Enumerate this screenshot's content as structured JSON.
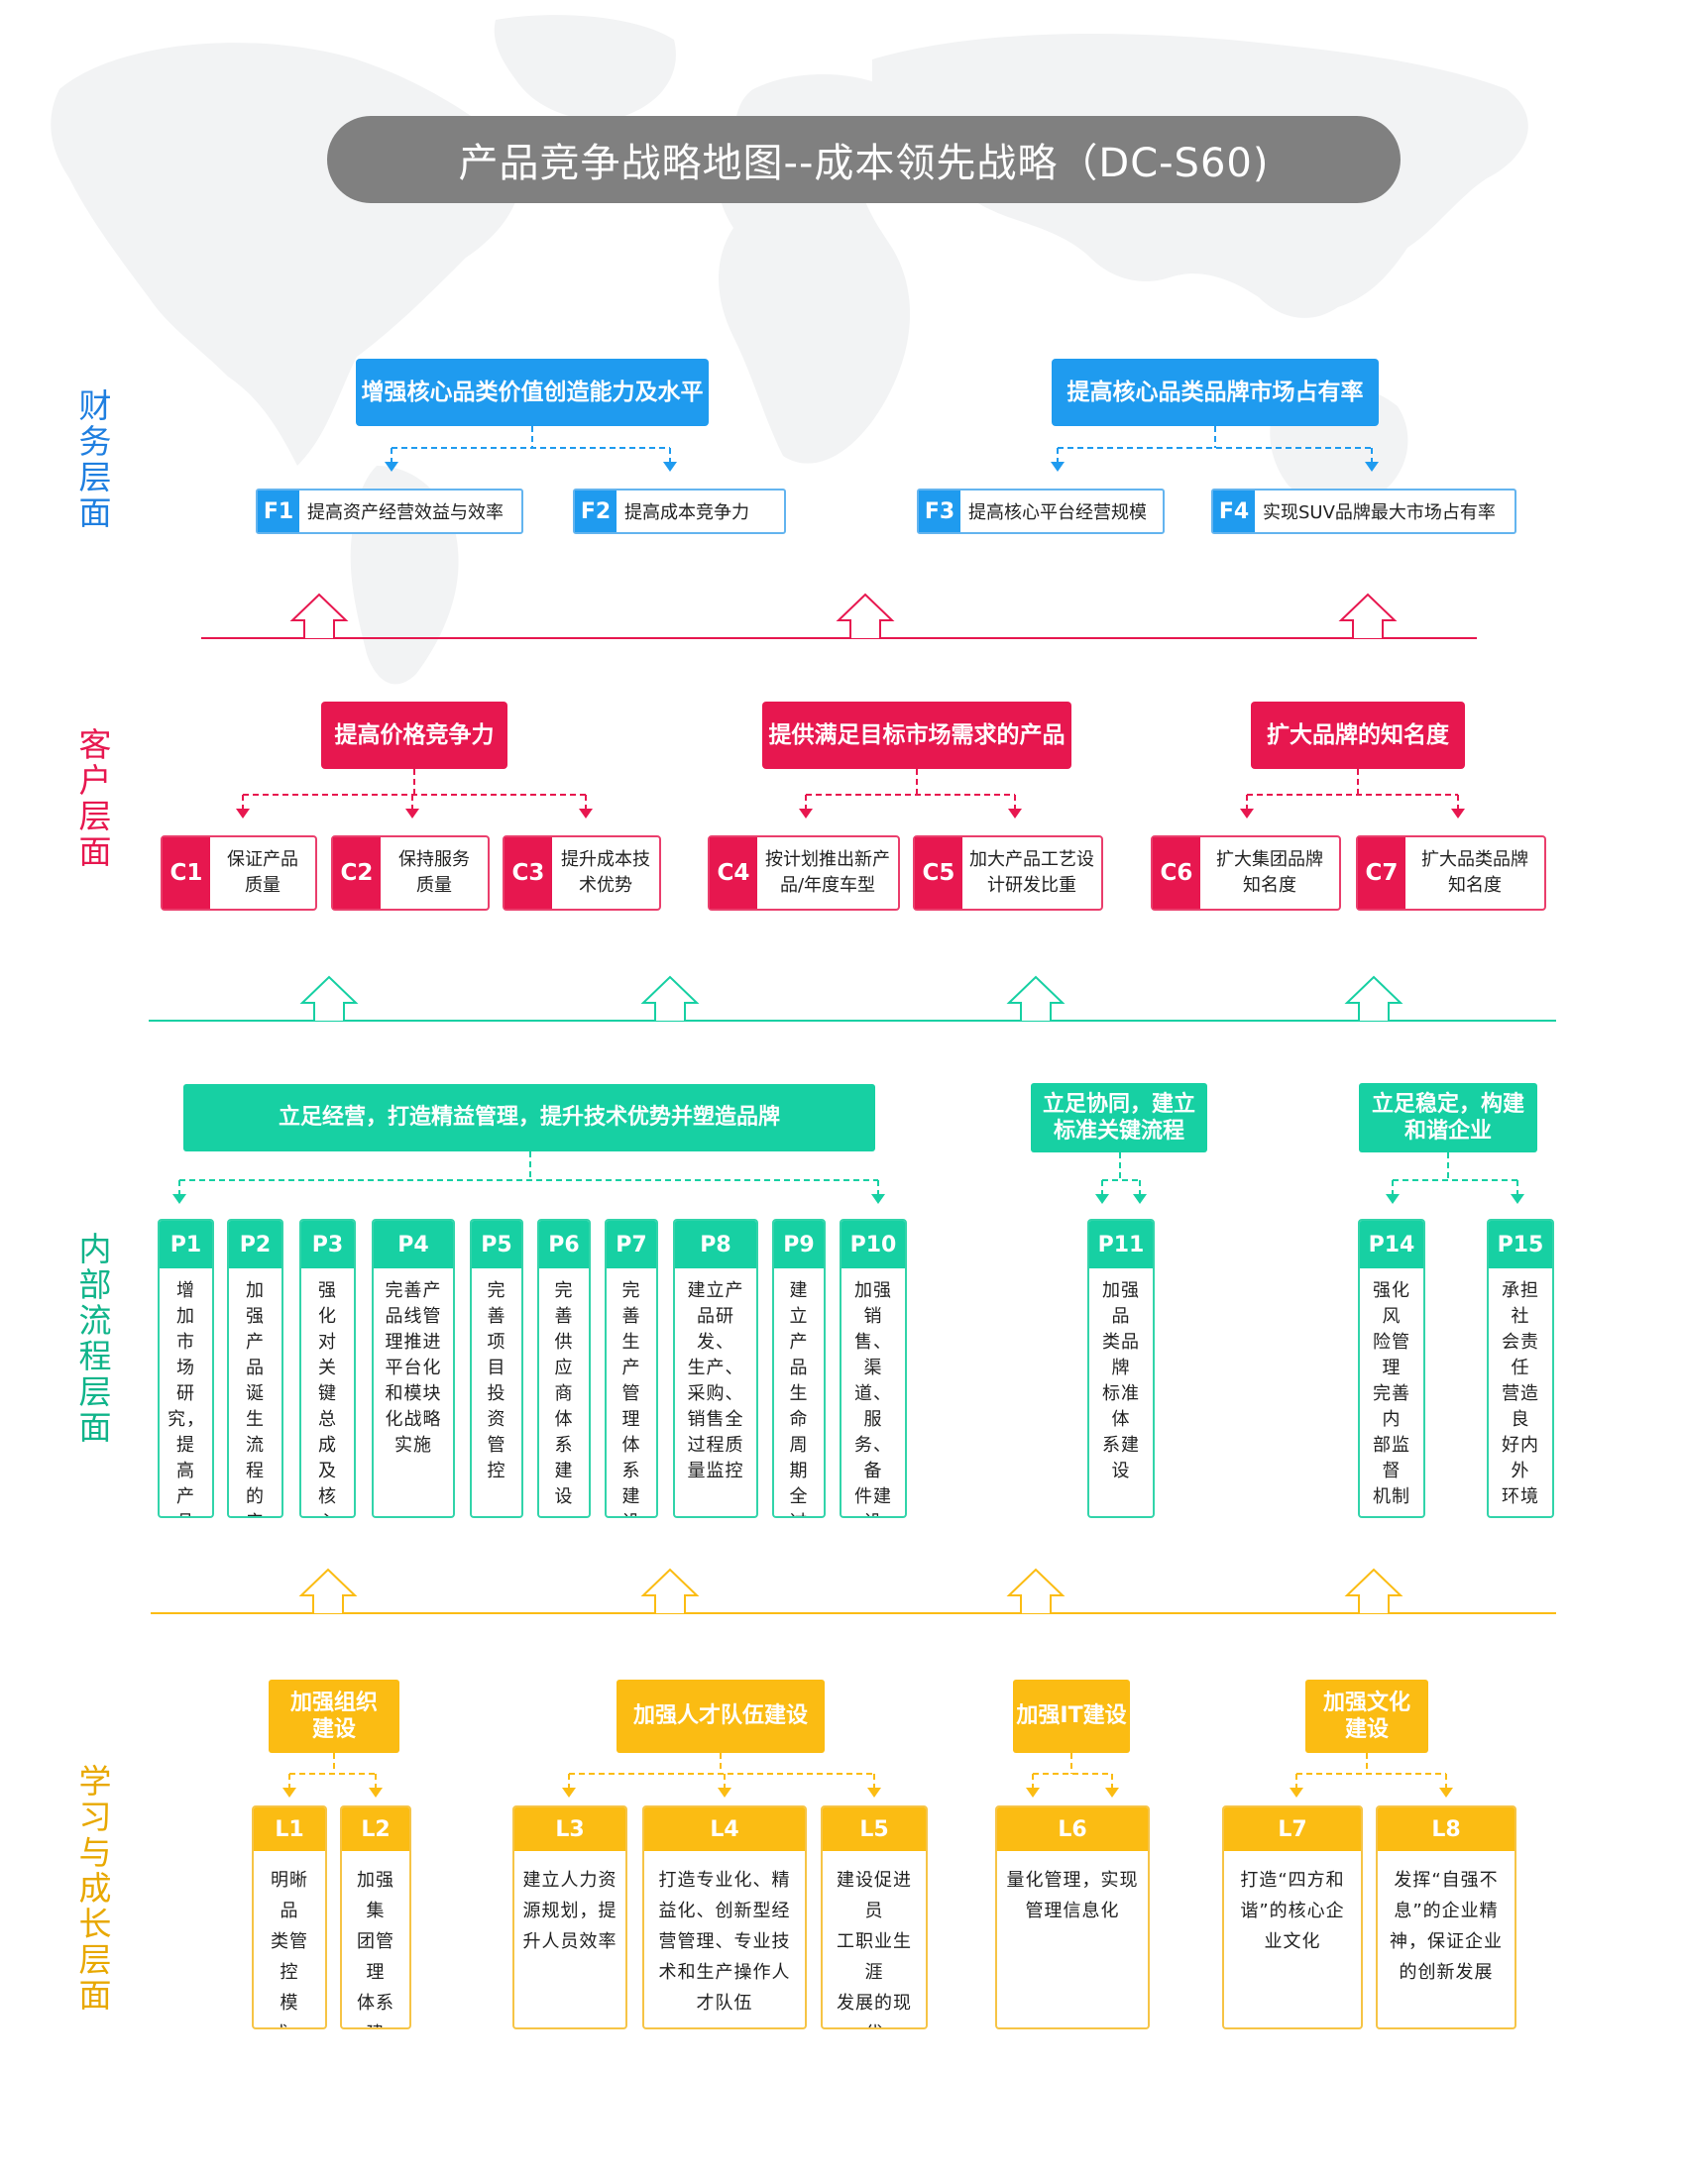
{
  "title": "产品竞争战略地图--成本领先战略（DC-S60)",
  "colors": {
    "financial": "#1f9bef",
    "customer": "#e7174f",
    "internal": "#17d0a3",
    "learning": "#fbbc13",
    "title_bg": "#808080"
  },
  "layers": {
    "financial": [
      "财",
      "务",
      "层",
      "面"
    ],
    "customer": [
      "客",
      "户",
      "层",
      "面"
    ],
    "internal": [
      "内",
      "部",
      "流",
      "程",
      "层",
      "面"
    ],
    "learning": [
      "学",
      "习",
      "与",
      "成",
      "长",
      "层",
      "面"
    ]
  },
  "financial": {
    "groups": [
      {
        "title": "增强核心品类价值创造能力及水平"
      },
      {
        "title": "提高核心品类品牌市场占有率"
      }
    ],
    "items": [
      {
        "code": "F1",
        "text": "提高资产经营效益与效率"
      },
      {
        "code": "F2",
        "text": "提高成本竞争力"
      },
      {
        "code": "F3",
        "text": "提高核心平台经营规模"
      },
      {
        "code": "F4",
        "text": "实现SUV品牌最大市场占有率"
      }
    ]
  },
  "customer": {
    "groups": [
      {
        "title": "提高价格竞争力"
      },
      {
        "title": "提供满足目标市场需求的产品"
      },
      {
        "title": "扩大品牌的知名度"
      }
    ],
    "items": [
      {
        "code": "C1",
        "text": "保证产品\n质量"
      },
      {
        "code": "C2",
        "text": "保持服务\n质量"
      },
      {
        "code": "C3",
        "text": "提升成本技\n术优势"
      },
      {
        "code": "C4",
        "text": "按计划推出新产\n品/年度车型"
      },
      {
        "code": "C5",
        "text": "加大产品工艺设\n计研发比重"
      },
      {
        "code": "C6",
        "text": "扩大集团品牌\n知名度"
      },
      {
        "code": "C7",
        "text": "扩大品类品牌\n知名度"
      }
    ]
  },
  "internal": {
    "groups": [
      {
        "title": "立足经营，打造精益管理，提升技术优势并塑造品牌"
      },
      {
        "title": "立足协同，建立\n标准关键流程"
      },
      {
        "title": "立足稳定，构建\n和谐企业"
      }
    ],
    "items": [
      {
        "code": "P1",
        "text": "增加\n市场\n研究，\n提高\n产品\n策划\n能力"
      },
      {
        "code": "P2",
        "text": "加强\n产品\n诞生\n流程\n的产\n品项\n目管\n控能\n力"
      },
      {
        "code": "P3",
        "text": "强化\n对关\n键总\n成及\n核心\n资源\n的掌\n控"
      },
      {
        "code": "P4",
        "text": "完善产\n品线管\n理推进\n平台化\n和模块\n化战略\n实施"
      },
      {
        "code": "P5",
        "text": "完善\n项目\n投资\n管控"
      },
      {
        "code": "P6",
        "text": "完善\n供应\n商体\n系建\n设"
      },
      {
        "code": "P7",
        "text": "完善\n生产\n管理\n体系\n建设"
      },
      {
        "code": "P8",
        "text": "建立产\n品研发、\n生产、\n采购、\n销售全\n过程质\n量监控"
      },
      {
        "code": "P9",
        "text": "建立\n产品\n生命\n周期\n全过\n程成\n本管\n控"
      },
      {
        "code": "P10",
        "text": "加强销\n售、渠\n道、服\n务、备\n件建设\n与支持"
      },
      {
        "code": "P11",
        "text": "加强品\n类品牌\n标准体\n系建设"
      },
      {
        "code": "P14",
        "text": "强化风\n险管理\n完善内\n部监督\n机制"
      },
      {
        "code": "P15",
        "text": "承担社\n会责任\n营造良\n好内外\n环境"
      }
    ]
  },
  "learning": {
    "groups": [
      {
        "title": "加强组织\n建设"
      },
      {
        "title": "加强人才队伍建设"
      },
      {
        "title": "加强IT建设"
      },
      {
        "title": "加强文化\n建设"
      }
    ],
    "items": [
      {
        "code": "L1",
        "text": "明晰品\n类管控\n模式，\n提升管\n理效率"
      },
      {
        "code": "L2",
        "text": "加强集\n团管理\n体系建\n设"
      },
      {
        "code": "L3",
        "text": "建立人力资\n源规划，提\n升人员效率"
      },
      {
        "code": "L4",
        "text": "打造专业化、精\n益化、创新型经\n营管理、专业技\n术和生产操作人\n才队伍"
      },
      {
        "code": "L5",
        "text": "建设促进员\n工职业生涯\n发展的现代\n人力资源管\n理体系"
      },
      {
        "code": "L6",
        "text": "量化管理，实现\n管理信息化"
      },
      {
        "code": "L7",
        "text": "打造“四方和\n谐”的核心企\n业文化"
      },
      {
        "code": "L8",
        "text": "发挥“自强不\n息”的企业精\n神，保证企业\n的创新发展"
      }
    ]
  }
}
